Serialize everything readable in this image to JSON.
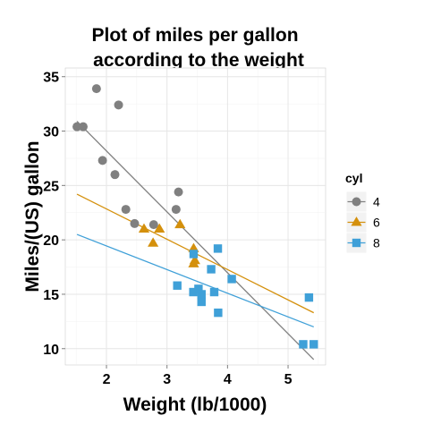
{
  "chart_data": {
    "type": "scatter",
    "title_lines": [
      "Plot of miles per gallon",
      "according to the weight"
    ],
    "xlabel": "Weight (lb/1000)",
    "ylabel": "Miles/(US) gallon",
    "xlim": [
      1.32,
      5.62
    ],
    "ylim": [
      8.5,
      35.8
    ],
    "x_ticks": [
      2,
      3,
      4,
      5
    ],
    "y_ticks": [
      10,
      15,
      20,
      25,
      30,
      35
    ],
    "grid": true,
    "legend": {
      "title": "cyl",
      "position": "right"
    },
    "series": [
      {
        "name": "4",
        "color": "#808080",
        "marker": "circle",
        "points": [
          [
            1.513,
            30.4
          ],
          [
            1.615,
            30.4
          ],
          [
            1.835,
            33.9
          ],
          [
            1.935,
            27.3
          ],
          [
            2.14,
            26.0
          ],
          [
            2.2,
            32.4
          ],
          [
            2.32,
            22.8
          ],
          [
            2.465,
            21.5
          ],
          [
            2.78,
            21.4
          ],
          [
            3.15,
            22.8
          ],
          [
            3.19,
            24.4
          ]
        ],
        "fit": [
          [
            1.513,
            30.9
          ],
          [
            5.424,
            9.0
          ]
        ]
      },
      {
        "name": "6",
        "color": "#d4900c",
        "marker": "triangle",
        "points": [
          [
            2.62,
            21.0
          ],
          [
            2.875,
            21.0
          ],
          [
            2.77,
            19.7
          ],
          [
            3.215,
            21.4
          ],
          [
            3.44,
            19.2
          ],
          [
            3.44,
            17.8
          ],
          [
            3.46,
            18.1
          ]
        ],
        "fit": [
          [
            1.513,
            24.2
          ],
          [
            5.424,
            13.3
          ]
        ]
      },
      {
        "name": "8",
        "color": "#3fa0d8",
        "marker": "square",
        "points": [
          [
            3.17,
            15.8
          ],
          [
            3.435,
            15.2
          ],
          [
            3.44,
            18.7
          ],
          [
            3.52,
            15.5
          ],
          [
            3.57,
            14.3
          ],
          [
            3.57,
            15.0
          ],
          [
            3.73,
            17.3
          ],
          [
            3.78,
            15.2
          ],
          [
            3.84,
            19.2
          ],
          [
            3.845,
            13.3
          ],
          [
            4.07,
            16.4
          ],
          [
            5.25,
            10.4
          ],
          [
            5.345,
            14.7
          ],
          [
            5.424,
            10.4
          ]
        ],
        "fit": [
          [
            1.513,
            20.5
          ],
          [
            5.424,
            12.0
          ]
        ]
      }
    ]
  }
}
